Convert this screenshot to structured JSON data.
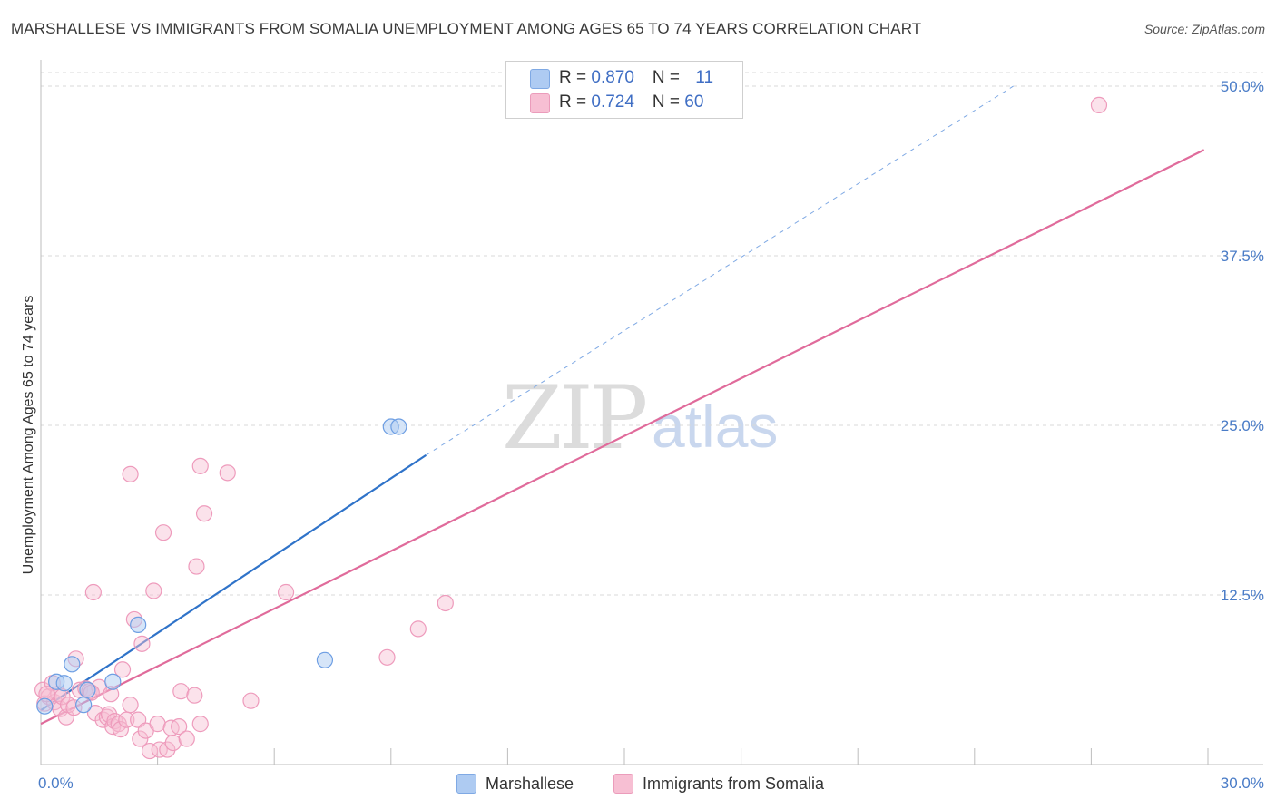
{
  "title": "MARSHALLESE VS IMMIGRANTS FROM SOMALIA UNEMPLOYMENT AMONG AGES 65 TO 74 YEARS CORRELATION CHART",
  "source": "Source: ZipAtlas.com",
  "watermark": {
    "zip": "ZIP",
    "atlas": "atlas"
  },
  "legend": {
    "rows": [
      {
        "r_label": "R = ",
        "r_value": "0.870",
        "n_label": "N = ",
        "n_value": "11",
        "color": "#aecbf2"
      },
      {
        "r_label": "R = ",
        "r_value": "0.724",
        "n_label": "N = ",
        "n_value": "60",
        "color": "#f7bfd3"
      }
    ]
  },
  "bottom_legend": [
    {
      "label": "Marshallese",
      "color": "#aecbf2"
    },
    {
      "label": "Immigrants from Somalia",
      "color": "#f7bfd3"
    }
  ],
  "chart_data": {
    "type": "scatter",
    "title": "MARSHALLESE VS IMMIGRANTS FROM SOMALIA UNEMPLOYMENT AMONG AGES 65 TO 74 YEARS CORRELATION CHART",
    "xlabel": "",
    "ylabel": "Unemployment Among Ages 65 to 74 years",
    "xlim": [
      0,
      30
    ],
    "ylim": [
      0,
      50
    ],
    "x_tick_labels": [
      "0.0%",
      "30.0%"
    ],
    "y_ticks": [
      12.5,
      25.0,
      37.5,
      50.0
    ],
    "y_tick_labels": [
      "12.5%",
      "25.0%",
      "37.5%",
      "50.0%"
    ],
    "grid": true,
    "series": [
      {
        "name": "Marshallese",
        "color": "#6d9ee3",
        "points": [
          [
            0.1,
            4.3
          ],
          [
            0.4,
            6.1
          ],
          [
            0.6,
            6.0
          ],
          [
            0.8,
            7.4
          ],
          [
            1.1,
            4.4
          ],
          [
            1.2,
            5.5
          ],
          [
            1.85,
            6.1
          ],
          [
            2.5,
            10.3
          ],
          [
            7.3,
            7.7
          ],
          [
            9.0,
            24.9
          ],
          [
            9.2,
            24.9
          ]
        ],
        "trend": {
          "x": [
            0.0,
            9.9
          ],
          "y": [
            4.0,
            22.8
          ],
          "extended_to": [
            25.0,
            50.0
          ]
        }
      },
      {
        "name": "Immigrants from Somalia",
        "color": "#ee8db0",
        "points": [
          [
            0.05,
            5.5
          ],
          [
            0.1,
            4.5
          ],
          [
            0.2,
            5.0
          ],
          [
            0.3,
            6.0
          ],
          [
            0.35,
            4.6
          ],
          [
            0.45,
            5.2
          ],
          [
            0.5,
            4.1
          ],
          [
            0.55,
            5.0
          ],
          [
            0.65,
            3.5
          ],
          [
            0.7,
            4.4
          ],
          [
            0.85,
            4.2
          ],
          [
            0.9,
            7.8
          ],
          [
            1.0,
            5.5
          ],
          [
            1.15,
            5.6
          ],
          [
            1.25,
            5.4
          ],
          [
            1.35,
            12.7
          ],
          [
            1.4,
            3.8
          ],
          [
            1.5,
            5.7
          ],
          [
            1.6,
            3.3
          ],
          [
            1.7,
            3.5
          ],
          [
            1.75,
            3.7
          ],
          [
            1.8,
            5.2
          ],
          [
            1.85,
            2.8
          ],
          [
            1.9,
            3.2
          ],
          [
            2.0,
            3.0
          ],
          [
            2.05,
            2.6
          ],
          [
            2.1,
            7.0
          ],
          [
            2.2,
            3.3
          ],
          [
            2.3,
            4.4
          ],
          [
            2.3,
            21.4
          ],
          [
            2.4,
            10.7
          ],
          [
            2.5,
            3.3
          ],
          [
            2.55,
            1.9
          ],
          [
            2.6,
            8.9
          ],
          [
            2.7,
            2.5
          ],
          [
            2.8,
            1.0
          ],
          [
            2.9,
            12.8
          ],
          [
            3.0,
            3.0
          ],
          [
            3.05,
            1.1
          ],
          [
            3.15,
            17.1
          ],
          [
            3.25,
            1.1
          ],
          [
            3.35,
            2.7
          ],
          [
            3.4,
            1.6
          ],
          [
            3.55,
            2.8
          ],
          [
            3.6,
            5.4
          ],
          [
            3.75,
            1.9
          ],
          [
            3.95,
            5.1
          ],
          [
            4.0,
            14.6
          ],
          [
            4.1,
            22.0
          ],
          [
            4.1,
            3.0
          ],
          [
            4.2,
            18.5
          ],
          [
            4.8,
            21.5
          ],
          [
            5.4,
            4.7
          ],
          [
            6.3,
            12.7
          ],
          [
            8.9,
            7.9
          ],
          [
            9.7,
            10.0
          ],
          [
            10.4,
            11.9
          ],
          [
            27.2,
            48.6
          ],
          [
            0.15,
            5.2
          ],
          [
            1.3,
            5.3
          ]
        ],
        "trend": {
          "x": [
            0.0,
            29.9
          ],
          "y": [
            3.0,
            45.3
          ]
        }
      }
    ]
  }
}
